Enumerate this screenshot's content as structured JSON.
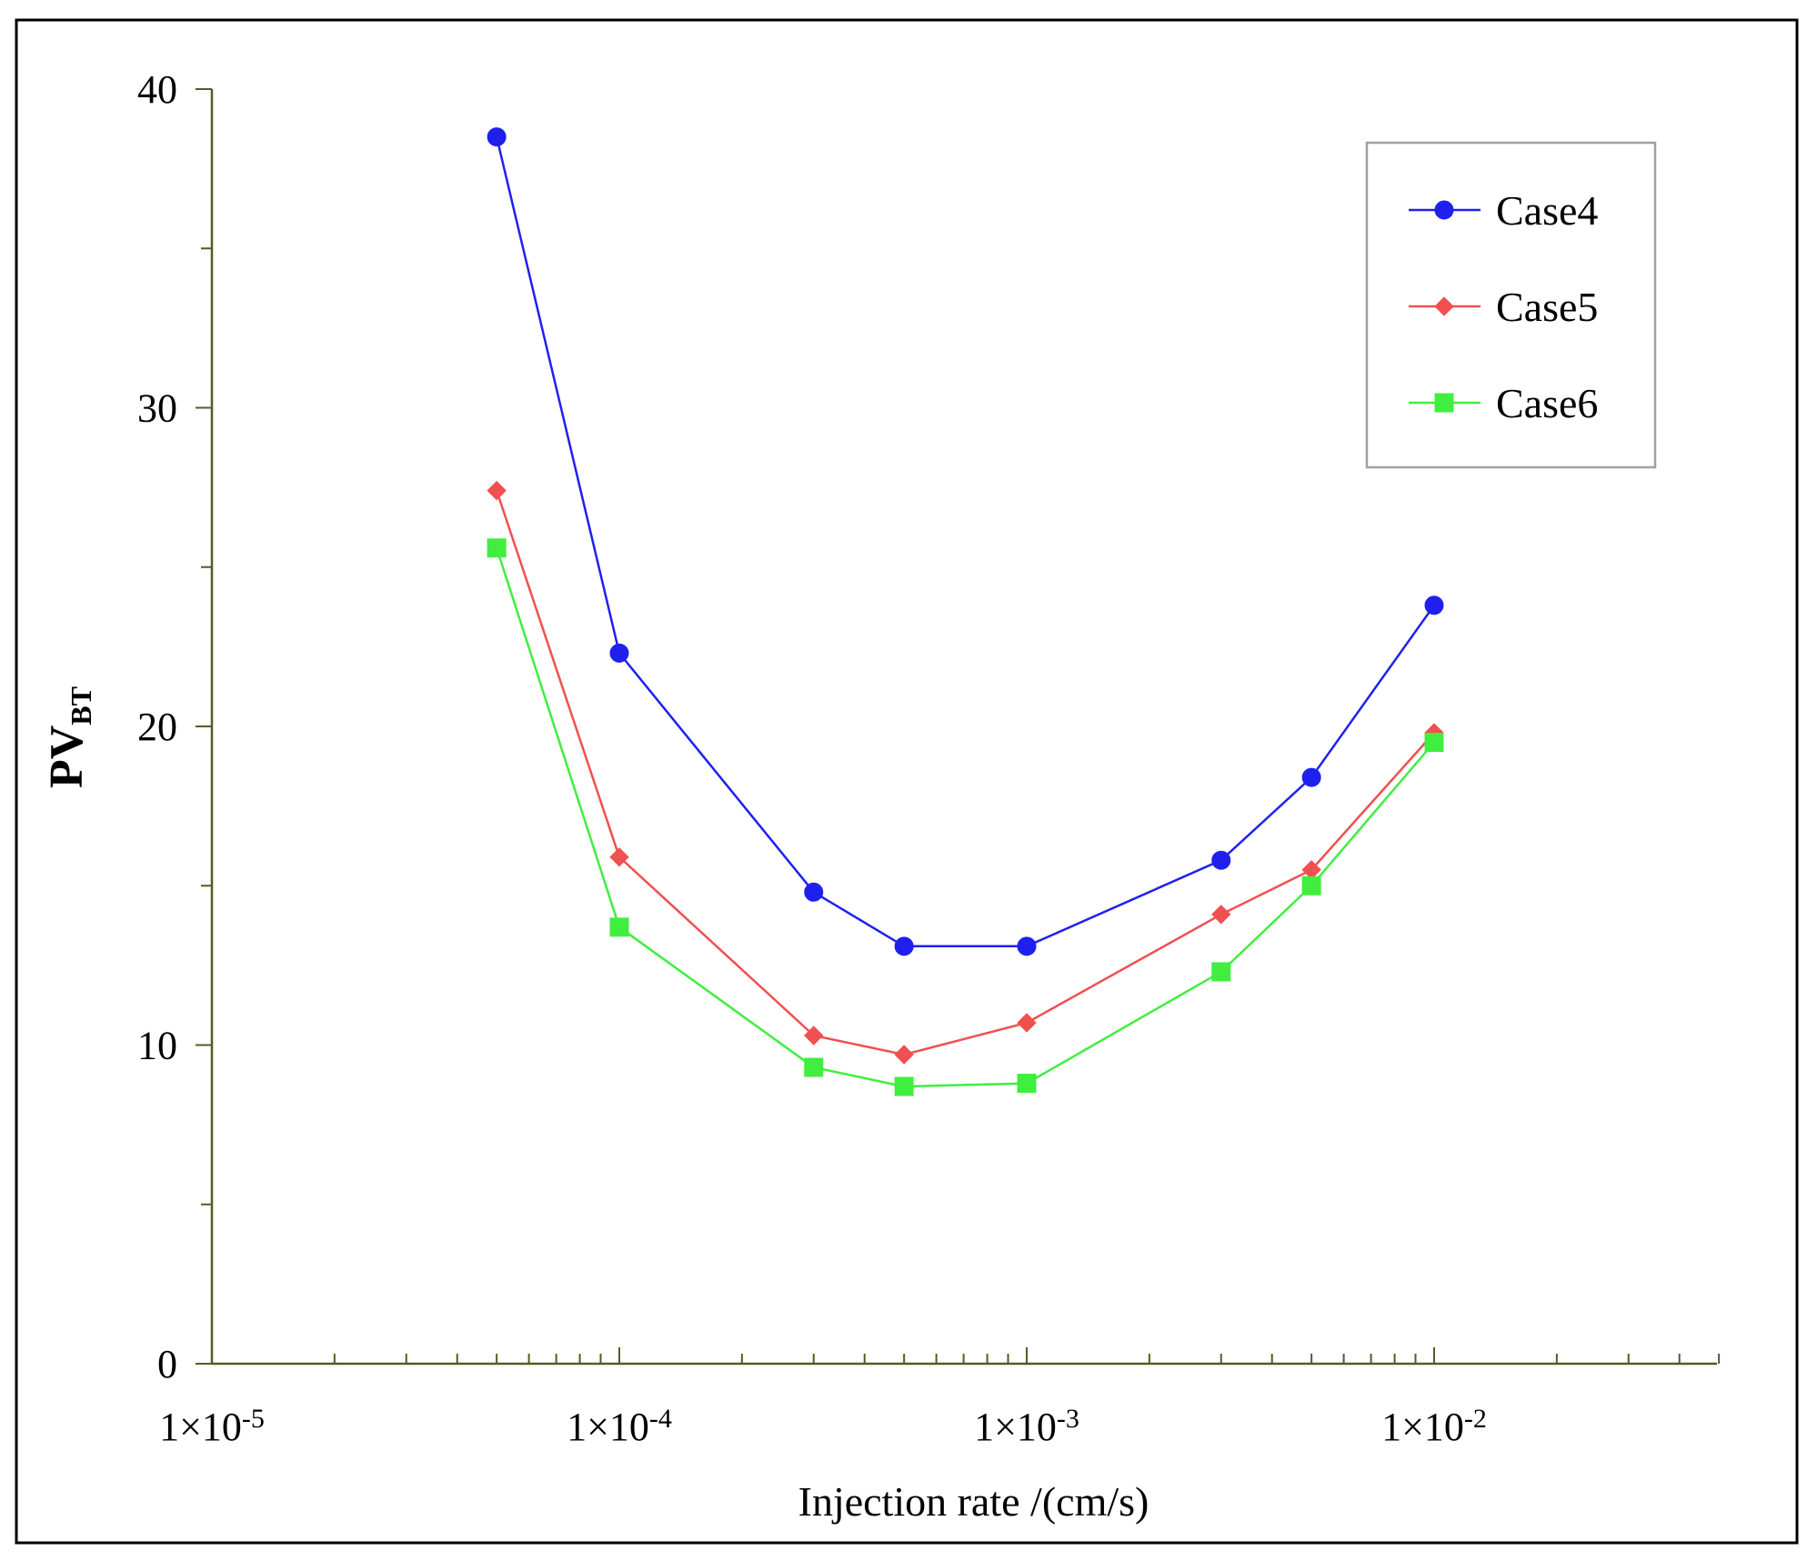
{
  "chart_data": {
    "type": "line",
    "title": "",
    "xlabel": "Injection rate /(cm/s)",
    "ylabel": {
      "main": "PV",
      "sub": "BT"
    },
    "xscale": "log",
    "xlim": [
      1e-05,
      0.05
    ],
    "ylim": [
      0,
      40
    ],
    "yticks": [
      0,
      10,
      20,
      30,
      40
    ],
    "yticks_minor": [
      5,
      15,
      25,
      35
    ],
    "ytick_labels": [
      "0",
      "10",
      "20",
      "30",
      "40"
    ],
    "xticks": [
      {
        "value": 1e-05,
        "mantissa": "1×10",
        "exp": "-5"
      },
      {
        "value": 0.0001,
        "mantissa": "1×10",
        "exp": "-4"
      },
      {
        "value": 0.001,
        "mantissa": "1×10",
        "exp": "-3"
      },
      {
        "value": 0.01,
        "mantissa": "1×10",
        "exp": "-2"
      }
    ],
    "x": [
      5e-05,
      0.0001,
      0.0003,
      0.0005,
      0.001,
      0.003,
      0.005,
      0.01
    ],
    "series": [
      {
        "name": "Case4",
        "color": "#2020ee",
        "marker": "circle",
        "values": [
          38.5,
          22.3,
          14.8,
          13.1,
          13.1,
          15.8,
          18.4,
          23.8
        ]
      },
      {
        "name": "Case5",
        "color": "#f05050",
        "marker": "diamond",
        "values": [
          27.4,
          15.9,
          10.3,
          9.7,
          10.7,
          14.1,
          15.5,
          19.8
        ]
      },
      {
        "name": "Case6",
        "color": "#40ee40",
        "marker": "square",
        "values": [
          25.6,
          13.7,
          9.3,
          8.7,
          8.8,
          12.3,
          15.0,
          19.5
        ]
      }
    ],
    "legend_position": "top-right",
    "grid": false
  }
}
